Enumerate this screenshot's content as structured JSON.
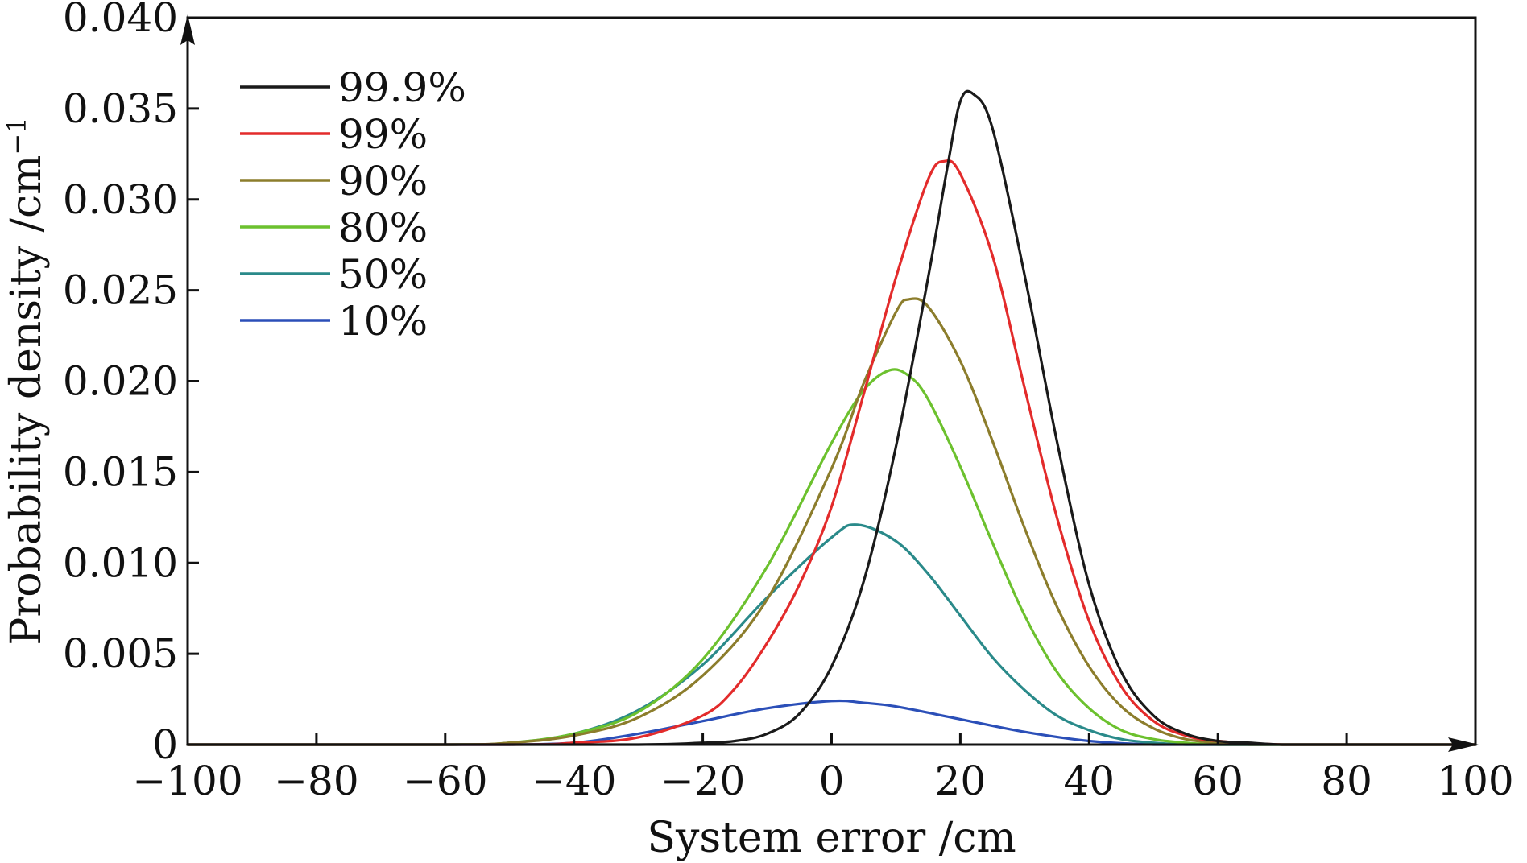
{
  "chart_data": {
    "type": "line",
    "xlabel": "System error /cm",
    "ylabel": "Probability density /cm",
    "ylabel_superscript": "−1",
    "xlim": [
      -100,
      100
    ],
    "ylim": [
      0,
      0.04
    ],
    "xticks": [
      -100,
      -80,
      -60,
      -40,
      -20,
      0,
      20,
      40,
      60,
      80,
      100
    ],
    "xtick_labels": [
      "−100",
      "−80",
      "−60",
      "−40",
      "−20",
      "0",
      "20",
      "40",
      "60",
      "80",
      "100"
    ],
    "yticks": [
      0,
      0.005,
      0.01,
      0.015,
      0.02,
      0.025,
      0.03,
      0.035,
      0.04
    ],
    "ytick_labels": [
      "0",
      "0.005",
      "0.010",
      "0.015",
      "0.020",
      "0.025",
      "0.030",
      "0.035",
      "0.040"
    ],
    "grid": false,
    "legend_position": "top-left",
    "series": [
      {
        "name": "99.9%",
        "color": "#1a1a1a",
        "x": [
          -100,
          -60,
          -30,
          -20,
          -15,
          -10,
          -5,
          0,
          5,
          10,
          15,
          18,
          20,
          22,
          25,
          30,
          35,
          40,
          45,
          50,
          55,
          60,
          65,
          70,
          80,
          100
        ],
        "y": [
          0,
          0,
          0,
          0.0001,
          0.0002,
          0.0006,
          0.0017,
          0.0043,
          0.009,
          0.0164,
          0.0257,
          0.0318,
          0.0354,
          0.0358,
          0.0339,
          0.0258,
          0.0167,
          0.0088,
          0.004,
          0.0016,
          0.0006,
          0.0002,
          0.0001,
          0,
          0,
          0
        ]
      },
      {
        "name": "99%",
        "color": "#e32b2b",
        "x": [
          -100,
          -50,
          -40,
          -30,
          -20,
          -15,
          -10,
          -5,
          0,
          5,
          10,
          15,
          17.5,
          20,
          25,
          30,
          35,
          40,
          45,
          50,
          55,
          60,
          70,
          80,
          100
        ],
        "y": [
          0,
          0,
          0.0001,
          0.0004,
          0.0016,
          0.0031,
          0.0056,
          0.0088,
          0.0131,
          0.0193,
          0.0257,
          0.0311,
          0.0321,
          0.0314,
          0.0269,
          0.0196,
          0.0125,
          0.0068,
          0.0032,
          0.0013,
          0.0005,
          0.0002,
          0,
          0,
          0
        ]
      },
      {
        "name": "90%",
        "color": "#8c7d2c",
        "x": [
          -100,
          -60,
          -50,
          -40,
          -30,
          -20,
          -10,
          0,
          5,
          10,
          12,
          15,
          20,
          25,
          30,
          35,
          40,
          45,
          50,
          55,
          60,
          65,
          70,
          80,
          100
        ],
        "y": [
          0,
          0,
          0.0001,
          0.0005,
          0.0015,
          0.0038,
          0.008,
          0.0152,
          0.0199,
          0.0238,
          0.0245,
          0.0241,
          0.0211,
          0.0167,
          0.0119,
          0.0076,
          0.0043,
          0.0021,
          0.0009,
          0.0003,
          0.0001,
          0,
          0,
          0,
          0
        ]
      },
      {
        "name": "80%",
        "color": "#6cc12e",
        "x": [
          -100,
          -60,
          -50,
          -40,
          -30,
          -20,
          -10,
          0,
          5,
          9,
          12,
          15,
          20,
          25,
          30,
          35,
          40,
          45,
          50,
          55,
          60,
          70,
          80,
          100
        ],
        "y": [
          0,
          0,
          0.0001,
          0.0006,
          0.0018,
          0.0047,
          0.0098,
          0.0166,
          0.0195,
          0.0206,
          0.0203,
          0.019,
          0.0153,
          0.0111,
          0.0071,
          0.004,
          0.002,
          0.0008,
          0.0003,
          0.0001,
          0,
          0,
          0,
          0
        ]
      },
      {
        "name": "50%",
        "color": "#2a8a8a",
        "x": [
          -100,
          -60,
          -50,
          -40,
          -30,
          -20,
          -10,
          0,
          4,
          10,
          15,
          20,
          25,
          30,
          35,
          40,
          45,
          50,
          55,
          60,
          70,
          80,
          100
        ],
        "y": [
          0,
          0,
          0.0001,
          0.0006,
          0.0019,
          0.0044,
          0.0081,
          0.0114,
          0.0121,
          0.0112,
          0.0094,
          0.0071,
          0.0048,
          0.003,
          0.0016,
          0.0008,
          0.0003,
          0.0001,
          0,
          0,
          0,
          0,
          0
        ]
      },
      {
        "name": "10%",
        "color": "#2b4fb8",
        "x": [
          -100,
          -60,
          -50,
          -40,
          -30,
          -20,
          -10,
          0,
          5,
          10,
          20,
          30,
          40,
          50,
          60,
          80,
          100
        ],
        "y": [
          0,
          0,
          0,
          0.0001,
          0.0006,
          0.0013,
          0.002,
          0.0024,
          0.0023,
          0.0021,
          0.0014,
          0.0007,
          0.0002,
          0,
          0,
          0,
          0
        ]
      }
    ]
  }
}
